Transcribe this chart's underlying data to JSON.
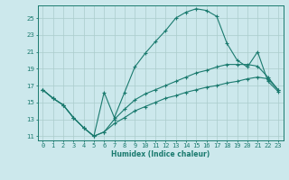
{
  "xlabel": "Humidex (Indice chaleur)",
  "background_color": "#cce8ec",
  "grid_color": "#aacccc",
  "line_color": "#1a7a6e",
  "xlim": [
    -0.5,
    23.5
  ],
  "ylim": [
    10.5,
    26.5
  ],
  "xticks": [
    0,
    1,
    2,
    3,
    4,
    5,
    6,
    7,
    8,
    9,
    10,
    11,
    12,
    13,
    14,
    15,
    16,
    17,
    18,
    19,
    20,
    21,
    22,
    23
  ],
  "yticks": [
    11,
    13,
    15,
    17,
    19,
    21,
    23,
    25
  ],
  "curve1_x": [
    0,
    1,
    2,
    3,
    4,
    5,
    6,
    7,
    8,
    9,
    10,
    11,
    12,
    13,
    14,
    15,
    16,
    17,
    18,
    19,
    20,
    21,
    22,
    23
  ],
  "curve1_y": [
    16.5,
    15.5,
    14.7,
    13.2,
    12.0,
    11.0,
    16.2,
    13.2,
    16.2,
    19.2,
    20.8,
    22.2,
    23.5,
    25.0,
    25.7,
    26.1,
    25.9,
    25.2,
    22.0,
    20.0,
    19.2,
    21.0,
    17.5,
    16.3
  ],
  "curve2_x": [
    0,
    1,
    2,
    3,
    4,
    5,
    6,
    7,
    8,
    9,
    10,
    11,
    12,
    13,
    14,
    15,
    16,
    17,
    18,
    19,
    20,
    21,
    22,
    23
  ],
  "curve2_y": [
    16.5,
    15.5,
    14.7,
    13.2,
    12.0,
    11.0,
    11.5,
    13.0,
    14.2,
    15.3,
    16.0,
    16.5,
    17.0,
    17.5,
    18.0,
    18.5,
    18.8,
    19.2,
    19.5,
    19.5,
    19.5,
    19.3,
    18.0,
    16.5
  ],
  "curve3_x": [
    0,
    1,
    2,
    3,
    4,
    5,
    6,
    7,
    8,
    9,
    10,
    11,
    12,
    13,
    14,
    15,
    16,
    17,
    18,
    19,
    20,
    21,
    22,
    23
  ],
  "curve3_y": [
    16.5,
    15.5,
    14.7,
    13.2,
    12.0,
    11.0,
    11.5,
    12.5,
    13.2,
    14.0,
    14.5,
    15.0,
    15.5,
    15.8,
    16.2,
    16.5,
    16.8,
    17.0,
    17.3,
    17.5,
    17.8,
    18.0,
    17.8,
    16.5
  ]
}
